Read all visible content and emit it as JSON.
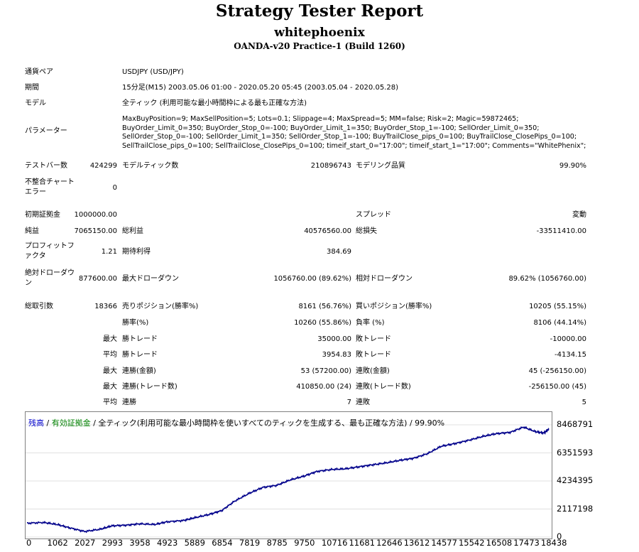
{
  "header": {
    "title": "Strategy Tester Report",
    "account": "whitephoenix",
    "server": "OANDA-v20 Practice-1 (Build 1260)"
  },
  "info": {
    "pair_label": "通貨ペア",
    "pair_value": "USDJPY (USD/JPY)",
    "period_label": "期間",
    "period_value": "15分足(M15) 2003.05.06 01:00 - 2020.05.20 05:45 (2003.05.04 - 2020.05.28)",
    "model_label": "モデル",
    "model_value": "全ティック (利用可能な最小時間枠による最も正確な方法)",
    "params_label": "パラメーター",
    "params_value": "MaxBuyPosition=9; MaxSellPosition=5; Lots=0.1; Slippage=4; MaxSpread=5; MM=false; Risk=2; Magic=59872465; BuyOrder_Limit_0=350; BuyOrder_Stop_0=-100; BuyOrder_Limit_1=350; BuyOrder_Stop_1=-100; SellOrder_Limit_0=350; SellOrder_Stop_0=-100; SellOrder_Limit_1=350; SellOrder_Stop_1=-100; BuyTrailClose_pips_0=100; BuyTrailClose_ClosePips_0=100; SellTrailClose_pips_0=100; SellTrailClose_ClosePips_0=100; timeif_start_0=\"17:00\"; timeif_start_1=\"17:00\"; Comments=\"WhitePhenix\";"
  },
  "stats": {
    "bars_label": "テストバー数",
    "bars_value": "424299",
    "ticks_label": "モデルティック数",
    "ticks_value": "210896743",
    "quality_label": "モデリング品質",
    "quality_value": "99.90%",
    "mismatch_label": "不整合チャートエラー",
    "mismatch_value": "0",
    "deposit_label": "初期証拠金",
    "deposit_value": "1000000.00",
    "spread_label": "スプレッド",
    "spread_value": "変動",
    "net_label": "純益",
    "net_value": "7065150.00",
    "gross_profit_label": "総利益",
    "gross_profit_value": "40576560.00",
    "gross_loss_label": "総損失",
    "gross_loss_value": "-33511410.00",
    "pf_label": "プロフィットファクタ",
    "pf_value": "1.21",
    "expected_label": "期待利得",
    "expected_value": "384.69",
    "abs_dd_label": "絶対ドローダウン",
    "abs_dd_value": "877600.00",
    "max_dd_label": "最大ドローダウン",
    "max_dd_value": "1056760.00 (89.62%)",
    "rel_dd_label": "相対ドローダウン",
    "rel_dd_value": "89.62% (1056760.00)",
    "trades_label": "総取引数",
    "trades_value": "18366",
    "short_label": "売りポジション(勝率%)",
    "short_value": "8161 (56.76%)",
    "long_label": "買いポジション(勝率%)",
    "long_value": "10205 (55.15%)",
    "win_label": "勝率(%)",
    "win_value": "10260 (55.86%)",
    "loss_label": "負率 (%)",
    "loss_value": "8106 (44.14%)",
    "max_label": "最大",
    "avg_label": "平均",
    "largest_win_label": "勝トレード",
    "largest_win_value": "35000.00",
    "largest_loss_label": "敗トレード",
    "largest_loss_value": "-10000.00",
    "avg_win_label": "勝トレード",
    "avg_win_value": "3954.83",
    "avg_loss_label": "敗トレード",
    "avg_loss_value": "-4134.15",
    "max_cons_wins_label": "連勝(金額)",
    "max_cons_wins_value": "53 (57200.00)",
    "max_cons_losses_label": "連敗(金額)",
    "max_cons_losses_value": "45 (-256150.00)",
    "max_cons_profit_label": "連勝(トレード数)",
    "max_cons_profit_value": "410850.00 (24)",
    "max_cons_loss_label": "連敗(トレード数)",
    "max_cons_loss_value": "-256150.00 (45)",
    "avg_cons_wins_label": "連勝",
    "avg_cons_wins_value": "7",
    "avg_cons_losses_label": "連敗",
    "avg_cons_losses_value": "5"
  },
  "chart_legend": {
    "balance": "残高",
    "sep1": " / ",
    "equity": "有効証拠金",
    "sep2": " / ",
    "rest": "全ティック(利用可能な最小時間枠を使いすべてのティックを生成する、最も正確な方法) / 99.90%"
  },
  "chart_data": {
    "type": "line",
    "x_ticks": [
      "0",
      "1062",
      "2027",
      "2993",
      "3958",
      "4923",
      "5889",
      "6854",
      "7819",
      "8785",
      "9750",
      "10716",
      "11681",
      "12646",
      "13612",
      "14577",
      "15542",
      "16508",
      "17473",
      "18438"
    ],
    "y_ticks": [
      "8468791",
      "6351593",
      "4234395",
      "2117198",
      "0"
    ],
    "xlim": [
      0,
      18366
    ],
    "ylim": [
      0,
      8468791
    ],
    "series": [
      {
        "color": "#00008b",
        "x": [
          0,
          600,
          1062,
          1500,
          2027,
          2600,
          2993,
          3500,
          3958,
          4500,
          4923,
          5500,
          5889,
          6400,
          6854,
          7300,
          7819,
          8300,
          8785,
          9250,
          9750,
          10200,
          10716,
          11200,
          11681,
          12150,
          12646,
          13150,
          13612,
          14100,
          14577,
          15050,
          15542,
          16050,
          16508,
          17000,
          17473,
          17900,
          18200,
          18366
        ],
        "y": [
          1050000,
          1100000,
          950000,
          700000,
          420000,
          600000,
          850000,
          900000,
          1000000,
          950000,
          1150000,
          1250000,
          1450000,
          1700000,
          2000000,
          2700000,
          3300000,
          3750000,
          3900000,
          4300000,
          4600000,
          4950000,
          5100000,
          5150000,
          5300000,
          5450000,
          5600000,
          5800000,
          5950000,
          6300000,
          6850000,
          7050000,
          7300000,
          7600000,
          7800000,
          7900000,
          8300000,
          7950000,
          7850000,
          8150000
        ]
      }
    ]
  }
}
